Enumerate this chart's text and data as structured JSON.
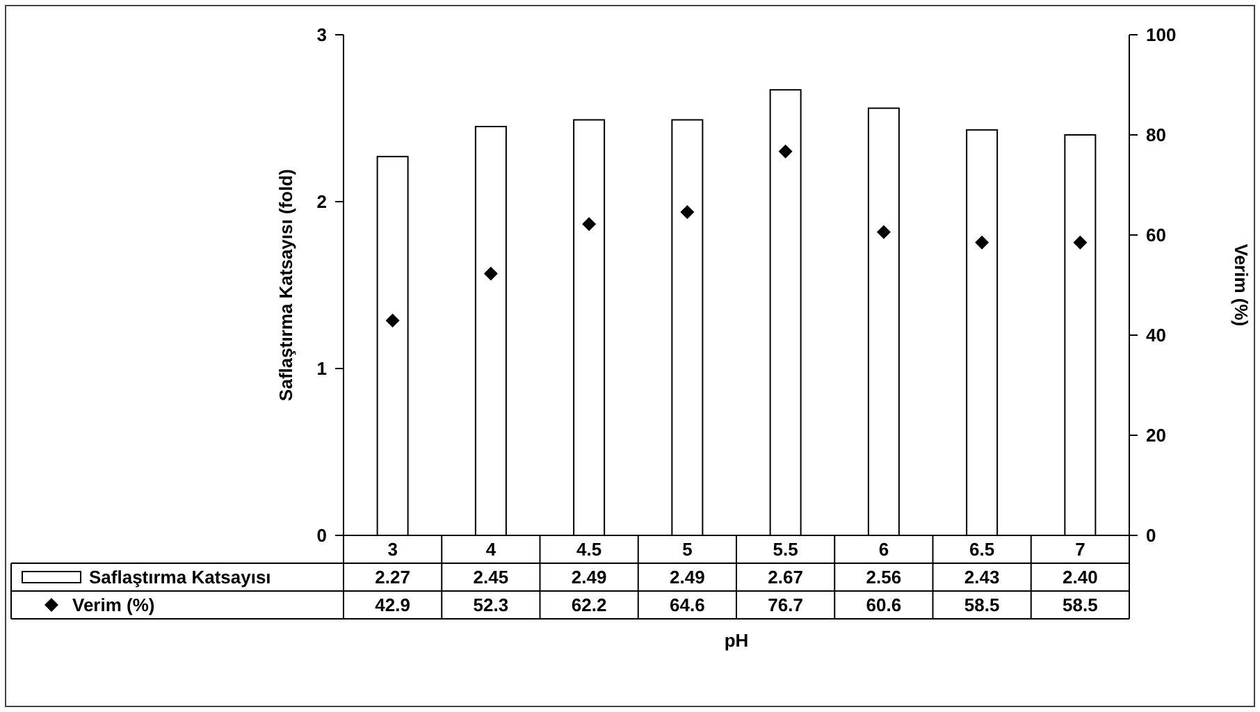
{
  "chart_data": {
    "type": "bar",
    "xlabel": "pH",
    "ylabel": "Saflaştırma Katsayısı (fold)",
    "y2label": "Verim (%)",
    "categories": [
      "3",
      "4",
      "4.5",
      "5",
      "5.5",
      "6",
      "6.5",
      "7"
    ],
    "series": [
      {
        "name": "Saflaştırma Katsayısı",
        "color": "#ffffff",
        "values": [
          2.27,
          2.45,
          2.49,
          2.49,
          2.67,
          2.56,
          2.43,
          2.4
        ],
        "value_labels": [
          "2.27",
          "2.45",
          "2.49",
          "2.49",
          "2.67",
          "2.56",
          "2.43",
          "2.40"
        ]
      },
      {
        "name": "Verim (%)",
        "type": "scatter",
        "axis": "y2",
        "color": "#000000",
        "marker": "diamond",
        "values": [
          42.9,
          52.3,
          62.2,
          64.6,
          76.7,
          60.6,
          58.5,
          58.5
        ],
        "value_labels": [
          "42.9",
          "52.3",
          "62.2",
          "64.6",
          "76.7",
          "60.6",
          "58.5",
          "58.5"
        ]
      }
    ],
    "ylim": [
      0,
      3
    ],
    "yticks": [
      0,
      1,
      2,
      3
    ],
    "y2lim": [
      0,
      100
    ],
    "y2ticks": [
      0,
      20,
      40,
      60,
      80,
      100
    ],
    "legend": "bottom"
  }
}
